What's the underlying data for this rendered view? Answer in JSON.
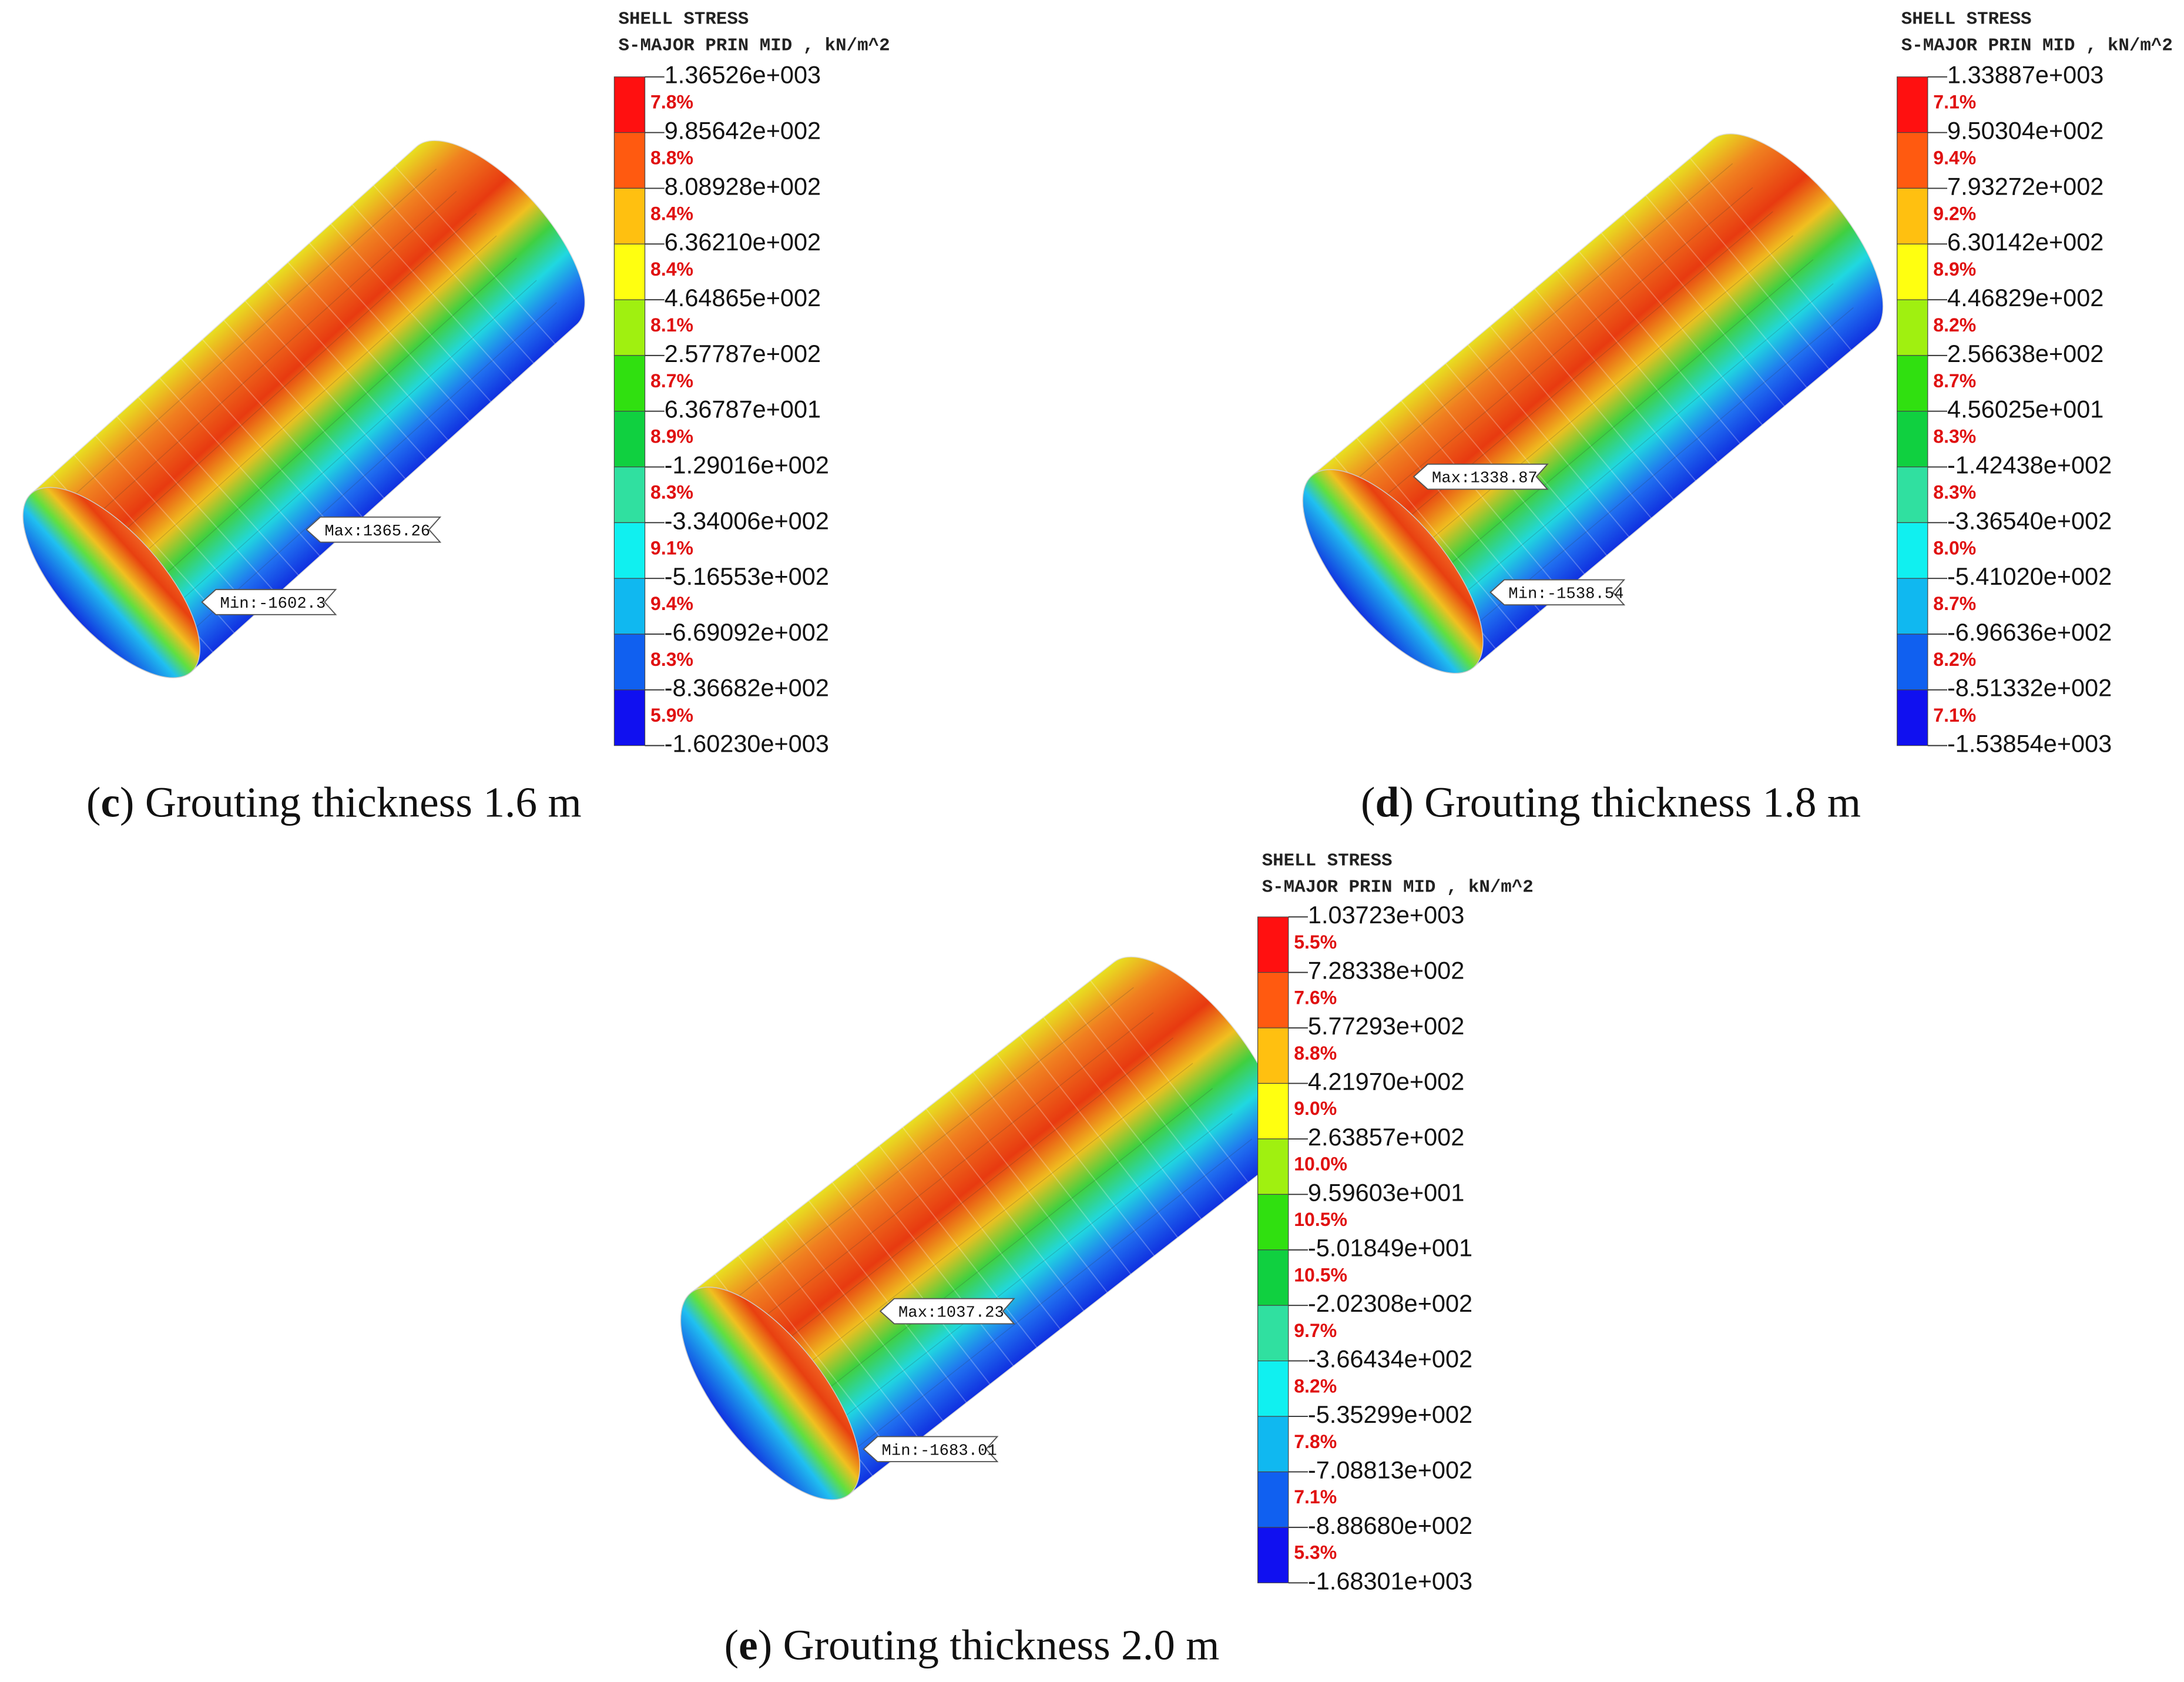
{
  "panels": [
    {
      "legend_title": [
        "SHELL STRESS",
        "S-MAJOR PRIN MID , kN/m^2"
      ],
      "ticks": [
        "1.36526e+003",
        "9.85642e+002",
        "8.08928e+002",
        "6.36210e+002",
        "4.64865e+002",
        "2.57787e+002",
        "6.36787e+001",
        "-1.29016e+002",
        "-3.34006e+002",
        "-5.16553e+002",
        "-6.69092e+002",
        "-8.36682e+002",
        "-1.60230e+003"
      ],
      "percents": [
        "7.8%",
        "8.8%",
        "8.4%",
        "8.4%",
        "8.1%",
        "8.7%",
        "8.9%",
        "8.3%",
        "9.1%",
        "9.4%",
        "8.3%",
        "5.9%"
      ],
      "max_label": "Max:1365.26",
      "min_label": "Min:-1602.3",
      "caption": {
        "open": "(",
        "letter": "c",
        "rest": ") Grouting thickness 1.6 m"
      }
    },
    {
      "legend_title": [
        "SHELL STRESS",
        "S-MAJOR PRIN MID , kN/m^2"
      ],
      "ticks": [
        "1.33887e+003",
        "9.50304e+002",
        "7.93272e+002",
        "6.30142e+002",
        "4.46829e+002",
        "2.56638e+002",
        "4.56025e+001",
        "-1.42438e+002",
        "-3.36540e+002",
        "-5.41020e+002",
        "-6.96636e+002",
        "-8.51332e+002",
        "-1.53854e+003"
      ],
      "percents": [
        "7.1%",
        "9.4%",
        "9.2%",
        "8.9%",
        "8.2%",
        "8.7%",
        "8.3%",
        "8.3%",
        "8.0%",
        "8.7%",
        "8.2%",
        "7.1%"
      ],
      "max_label": "Max:1338.87",
      "min_label": "Min:-1538.54",
      "caption": {
        "open": "(",
        "letter": "d",
        "rest": ") Grouting thickness 1.8 m"
      }
    },
    {
      "legend_title": [
        "SHELL STRESS",
        "S-MAJOR PRIN MID , kN/m^2"
      ],
      "ticks": [
        "1.03723e+003",
        "7.28338e+002",
        "5.77293e+002",
        "4.21970e+002",
        "2.63857e+002",
        "9.59603e+001",
        "-5.01849e+001",
        "-2.02308e+002",
        "-3.66434e+002",
        "-5.35299e+002",
        "-7.08813e+002",
        "-8.88680e+002",
        "-1.68301e+003"
      ],
      "percents": [
        "5.5%",
        "7.6%",
        "8.8%",
        "9.0%",
        "10.0%",
        "10.5%",
        "10.5%",
        "9.7%",
        "8.2%",
        "7.8%",
        "7.1%",
        "5.3%"
      ],
      "max_label": "Max:1037.23",
      "min_label": "Min:-1683.01",
      "caption": {
        "open": "(",
        "letter": "e",
        "rest": ") Grouting thickness 2.0 m"
      }
    }
  ]
}
